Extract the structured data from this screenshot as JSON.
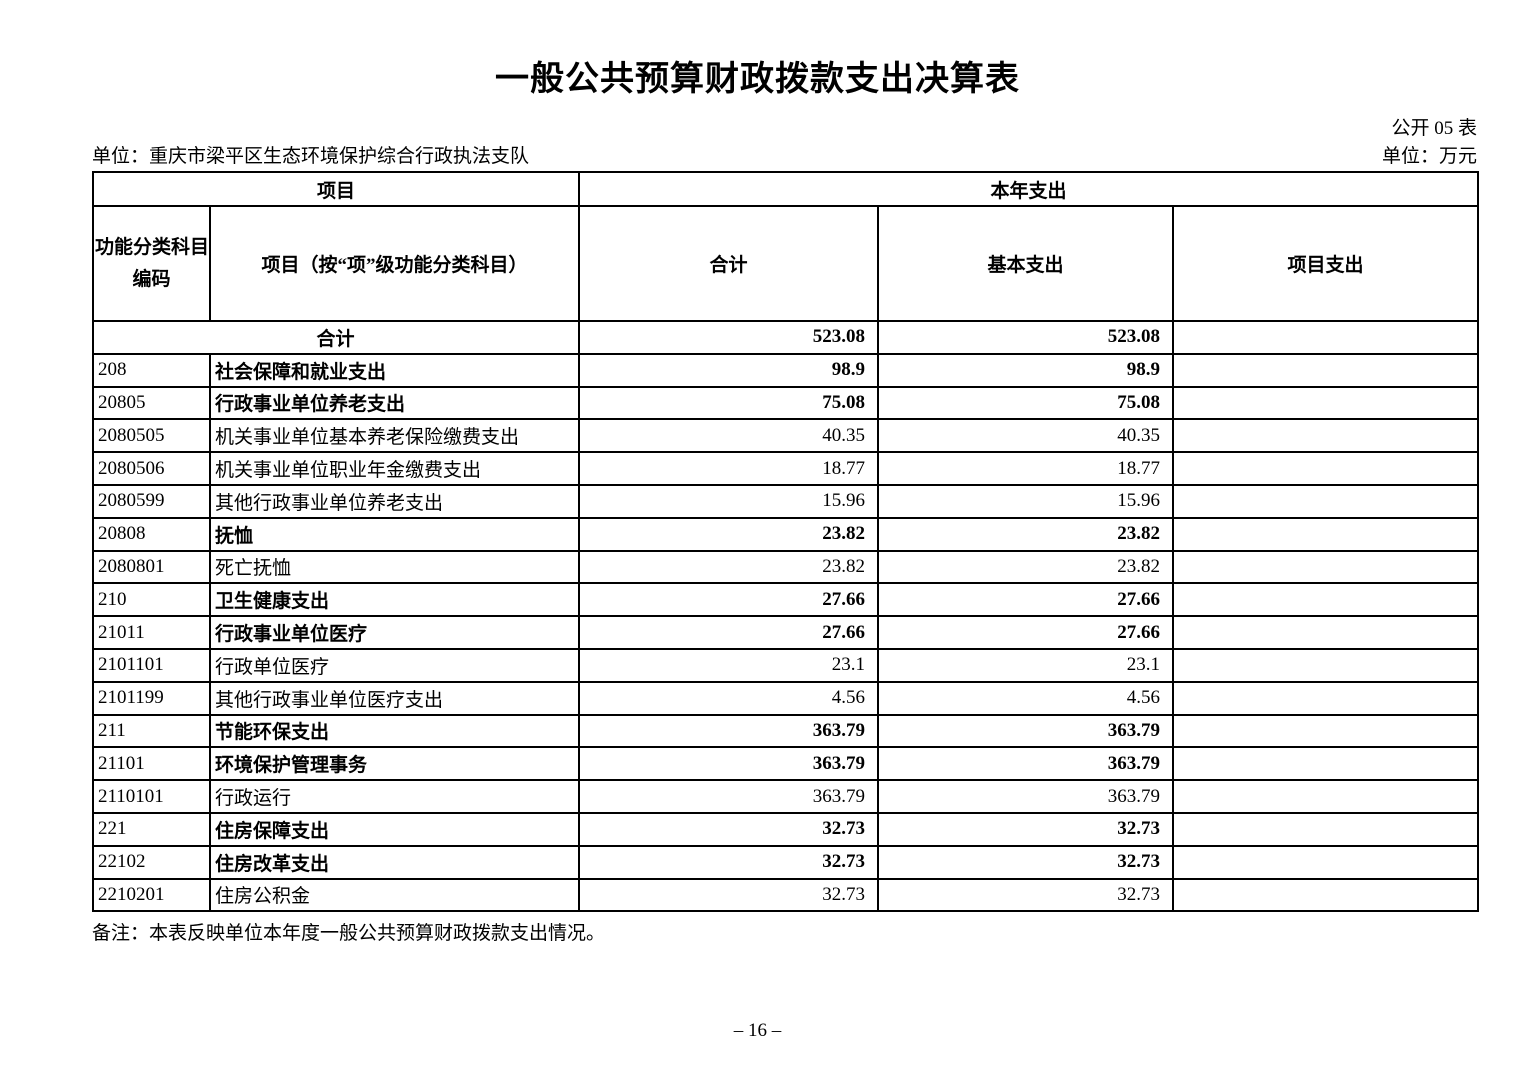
{
  "page": {
    "title": "一般公共预算财政拨款支出决算表",
    "table_code": "公开 05 表",
    "unit_label": "单位：重庆市梁平区生态环境保护综合行政执法支队",
    "currency_label": "单位：万元",
    "note": "备注：本表反映单位本年度一般公共预算财政拨款支出情况。",
    "page_number": "– 16 –"
  },
  "table": {
    "header": {
      "project_group": "项目",
      "year_expense_group": "本年支出",
      "col_code_line1": "功能分类科目",
      "col_code_line2": "编码",
      "col_item": "项目（按“项”级功能分类科目）",
      "col_total": "合计",
      "col_basic": "基本支出",
      "col_project": "项目支出"
    },
    "rows": [
      {
        "code": "",
        "name": "合计",
        "total": "523.08",
        "basic": "523.08",
        "project": "",
        "bold": true,
        "merge_code_name": true
      },
      {
        "code": "208",
        "name": "社会保障和就业支出",
        "total": "98.9",
        "basic": "98.9",
        "project": "",
        "bold": true
      },
      {
        "code": "20805",
        "name": "行政事业单位养老支出",
        "total": "75.08",
        "basic": "75.08",
        "project": "",
        "bold": true
      },
      {
        "code": "2080505",
        "name": "机关事业单位基本养老保险缴费支出",
        "total": "40.35",
        "basic": "40.35",
        "project": "",
        "bold": false
      },
      {
        "code": "2080506",
        "name": "机关事业单位职业年金缴费支出",
        "total": "18.77",
        "basic": "18.77",
        "project": "",
        "bold": false
      },
      {
        "code": "2080599",
        "name": "其他行政事业单位养老支出",
        "total": "15.96",
        "basic": "15.96",
        "project": "",
        "bold": false
      },
      {
        "code": "20808",
        "name": "抚恤",
        "total": "23.82",
        "basic": "23.82",
        "project": "",
        "bold": true
      },
      {
        "code": "2080801",
        "name": "死亡抚恤",
        "total": "23.82",
        "basic": "23.82",
        "project": "",
        "bold": false
      },
      {
        "code": "210",
        "name": "卫生健康支出",
        "total": "27.66",
        "basic": "27.66",
        "project": "",
        "bold": true
      },
      {
        "code": "21011",
        "name": "行政事业单位医疗",
        "total": "27.66",
        "basic": "27.66",
        "project": "",
        "bold": true
      },
      {
        "code": "2101101",
        "name": "行政单位医疗",
        "total": "23.1",
        "basic": "23.1",
        "project": "",
        "bold": false
      },
      {
        "code": "2101199",
        "name": "其他行政事业单位医疗支出",
        "total": "4.56",
        "basic": "4.56",
        "project": "",
        "bold": false
      },
      {
        "code": "211",
        "name": "节能环保支出",
        "total": "363.79",
        "basic": "363.79",
        "project": "",
        "bold": true
      },
      {
        "code": "21101",
        "name": "环境保护管理事务",
        "total": "363.79",
        "basic": "363.79",
        "project": "",
        "bold": true
      },
      {
        "code": "2110101",
        "name": "行政运行",
        "total": "363.79",
        "basic": "363.79",
        "project": "",
        "bold": false
      },
      {
        "code": "221",
        "name": "住房保障支出",
        "total": "32.73",
        "basic": "32.73",
        "project": "",
        "bold": true
      },
      {
        "code": "22102",
        "name": "住房改革支出",
        "total": "32.73",
        "basic": "32.73",
        "project": "",
        "bold": true
      },
      {
        "code": "2210201",
        "name": "住房公积金",
        "total": "32.73",
        "basic": "32.73",
        "project": "",
        "bold": false
      }
    ]
  }
}
